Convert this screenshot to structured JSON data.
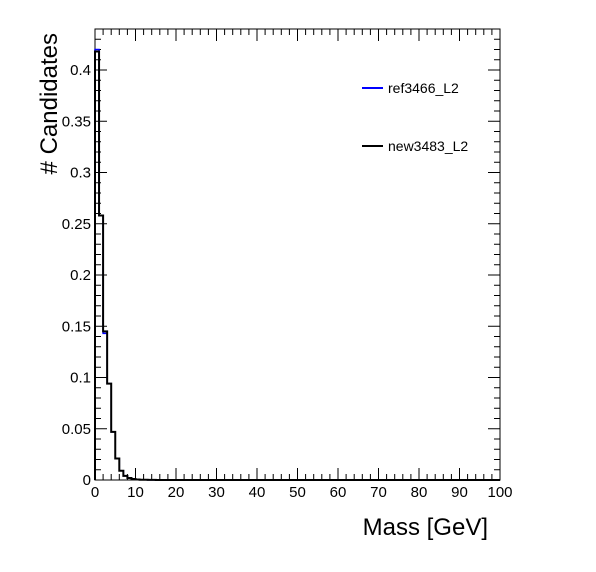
{
  "chart_data": {
    "type": "histogram",
    "xlabel": "Mass [GeV]",
    "ylabel": "# Candidates",
    "xlim": [
      0,
      100
    ],
    "ylim": [
      0,
      0.44
    ],
    "grid": false,
    "legend_position": "top-right",
    "x_ticks": [
      "0",
      "10",
      "20",
      "30",
      "40",
      "50",
      "60",
      "70",
      "80",
      "90",
      "100"
    ],
    "y_ticks": [
      "0",
      "0.05",
      "0.1",
      "0.15",
      "0.2",
      "0.25",
      "0.3",
      "0.35",
      "0.4"
    ],
    "bin_edges": [
      0,
      1,
      2,
      3,
      4,
      5,
      6,
      7,
      8,
      9,
      10,
      11,
      12,
      13,
      14,
      15,
      16,
      17,
      18,
      19,
      20,
      100
    ],
    "series": [
      {
        "name": "ref3466_L2",
        "color": "#0000ff",
        "values": [
          0.42,
          0.258,
          0.143,
          0.094,
          0.047,
          0.021,
          0.009,
          0.004,
          0.002,
          0.001,
          0.0005,
          0.0003,
          0.0002,
          0.0001,
          0.0001,
          0,
          0,
          0,
          0,
          0,
          0
        ]
      },
      {
        "name": "new3483_L2",
        "color": "#000000",
        "values": [
          0.418,
          0.258,
          0.145,
          0.094,
          0.047,
          0.021,
          0.009,
          0.004,
          0.002,
          0.001,
          0.0005,
          0.0003,
          0.0002,
          0.0001,
          0.0001,
          0,
          0,
          0,
          0,
          0,
          0
        ]
      }
    ]
  }
}
